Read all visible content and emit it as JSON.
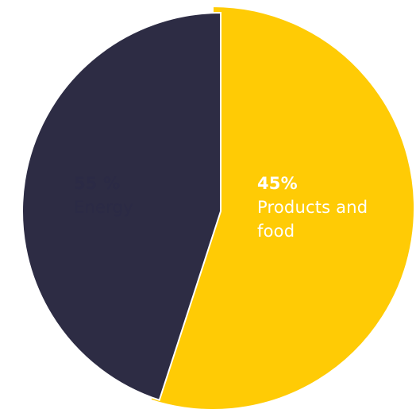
{
  "chart_data": {
    "type": "pie",
    "slices": [
      {
        "value": 55,
        "percent_label": "55 %",
        "label": "Energy",
        "color": "#FFCB05",
        "text_color": "#2B2A45"
      },
      {
        "value": 45,
        "percent_label": "45%",
        "label": "Products and food",
        "color": "#2D2C44",
        "text_color": "#FFFFFF"
      }
    ],
    "start_angle_deg": 0,
    "direction": "clockwise",
    "exploded_slice": "Products and food",
    "legend": "none"
  }
}
